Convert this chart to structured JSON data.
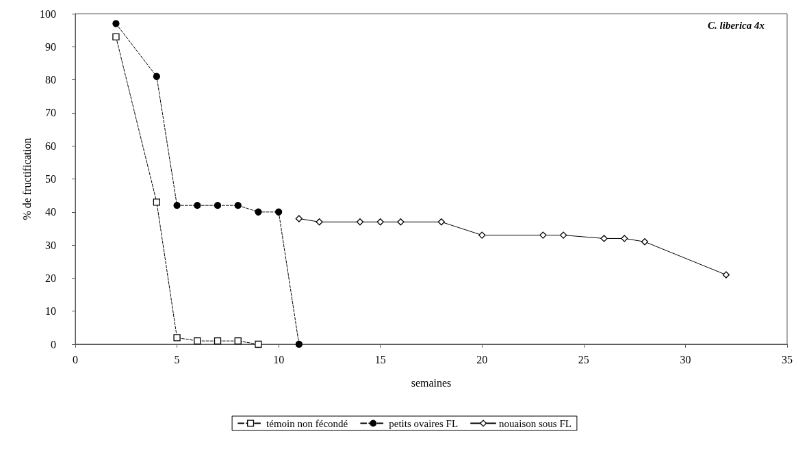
{
  "chart_data": {
    "type": "line",
    "title": "C. liberica 4x",
    "xlabel": "semaines",
    "ylabel": "% de fructification",
    "xlim": [
      0,
      35
    ],
    "xticks": [
      0,
      5,
      10,
      15,
      20,
      25,
      30,
      35
    ],
    "ylim": [
      0,
      100
    ],
    "yticks": [
      0,
      10,
      20,
      30,
      40,
      50,
      60,
      70,
      80,
      90,
      100
    ],
    "grid": false,
    "legend": "bottom",
    "series": [
      {
        "name": "témoin non fécondé",
        "color": "#000000",
        "marker": "square",
        "line_style": "dashed",
        "x": [
          2,
          4,
          5,
          6,
          7,
          8,
          9
        ],
        "values": [
          93,
          43,
          2,
          1,
          1,
          1,
          0
        ]
      },
      {
        "name": "petits ovaires FL",
        "color": "#000000",
        "marker": "circle",
        "line_style": "dashed",
        "x": [
          2,
          4,
          5,
          6,
          7,
          8,
          9,
          10,
          11
        ],
        "values": [
          97,
          81,
          42,
          42,
          42,
          42,
          40,
          40,
          0
        ]
      },
      {
        "name": "nouaison sous FL",
        "color": "#000000",
        "marker": "diamond",
        "line_style": "solid",
        "x": [
          11,
          12,
          14,
          15,
          16,
          18,
          20,
          23,
          24,
          26,
          27,
          28,
          32
        ],
        "values": [
          38,
          37,
          37,
          37,
          37,
          37,
          33,
          33,
          33,
          32,
          32,
          31,
          21
        ]
      }
    ]
  }
}
